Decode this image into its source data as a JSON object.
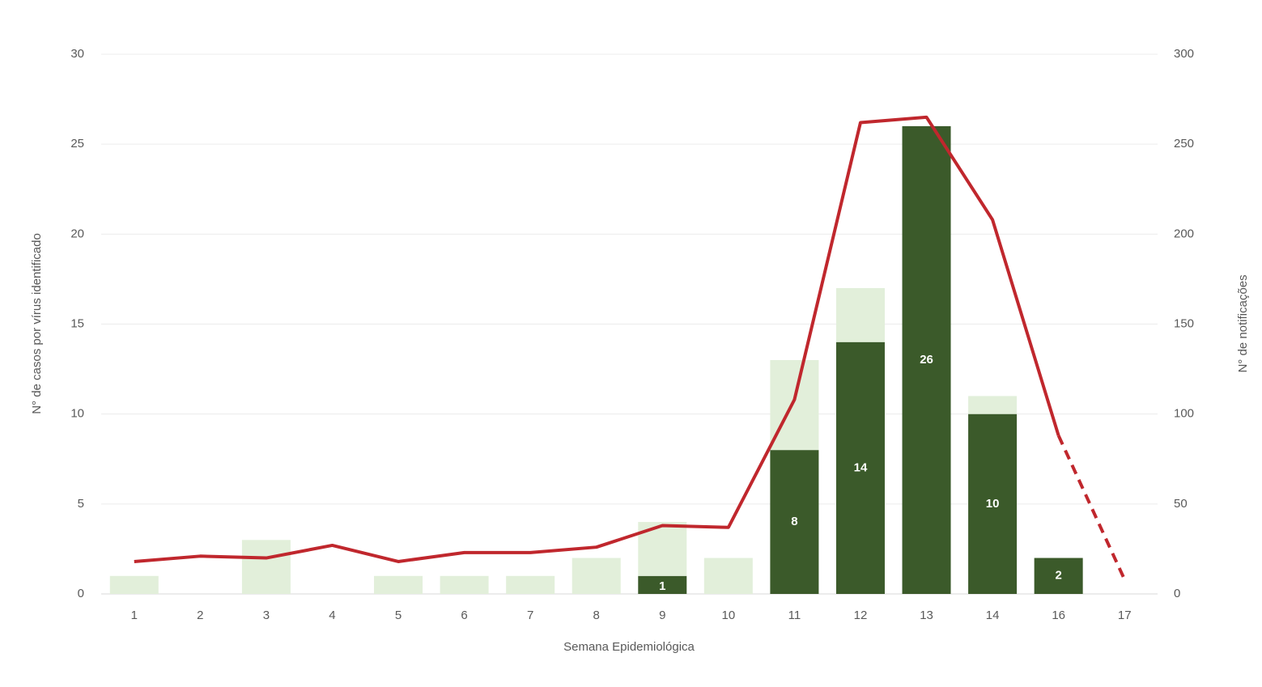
{
  "chart_data": {
    "type": "bar",
    "x_label": "Semana Epidemiológica",
    "y_label": "N° de casos por vírus identificado",
    "y2_label": "N° de notificações",
    "categories": [
      "1",
      "2",
      "3",
      "4",
      "5",
      "6",
      "7",
      "8",
      "9",
      "10",
      "11",
      "12",
      "13",
      "14",
      "16",
      "17"
    ],
    "stacked": true,
    "grid": true,
    "dashed_last": true,
    "series": [
      {
        "type": "bar",
        "color": "#3b5a2a",
        "values": [
          null,
          null,
          null,
          null,
          null,
          null,
          null,
          null,
          1,
          null,
          8,
          14,
          26,
          10,
          2,
          null
        ],
        "data_labels": true
      },
      {
        "type": "bar",
        "color": "#e2efda",
        "values": [
          1,
          null,
          3,
          null,
          1,
          1,
          1,
          2,
          3,
          2,
          5,
          3,
          null,
          1,
          null,
          null
        ]
      },
      {
        "type": "line",
        "axis": "y2",
        "color": "#c0272d",
        "values": [
          18,
          21,
          20,
          27,
          18,
          23,
          23,
          26,
          38,
          37,
          108,
          262,
          265,
          208,
          88,
          8
        ]
      }
    ],
    "ylim": [
      0,
      30
    ],
    "yticks": [
      0,
      5,
      10,
      15,
      20,
      25,
      30
    ],
    "y2lim": [
      0,
      300
    ],
    "y2ticks": [
      0,
      50,
      100,
      150,
      200,
      250,
      300
    ]
  }
}
